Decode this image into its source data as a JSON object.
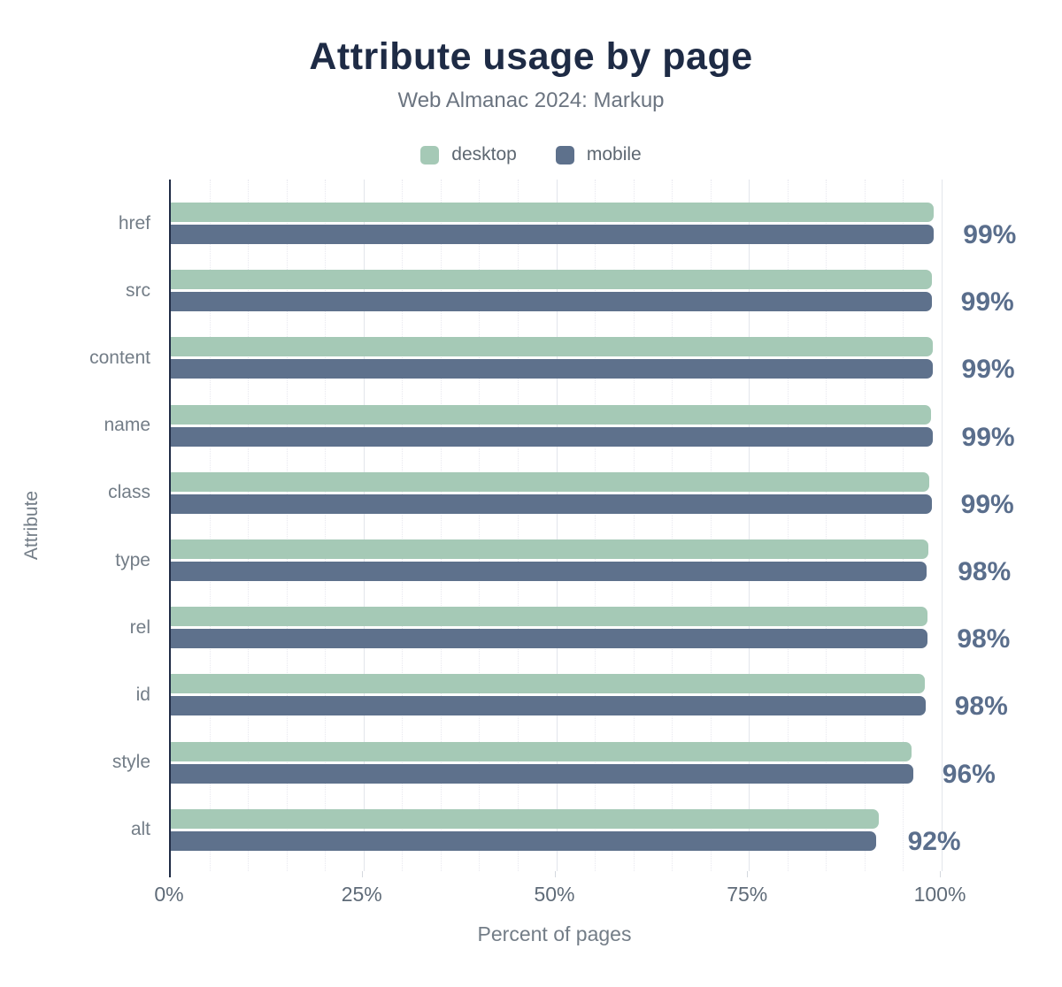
{
  "chart_data": {
    "type": "bar",
    "orientation": "horizontal",
    "title": "Attribute usage by page",
    "subtitle": "Web Almanac 2024: Markup",
    "categories": [
      "href",
      "src",
      "content",
      "name",
      "class",
      "type",
      "rel",
      "id",
      "style",
      "alt"
    ],
    "series": [
      {
        "name": "desktop",
        "color": "#a5c9b6",
        "values": [
          99.0,
          98.7,
          98.8,
          98.6,
          98.4,
          98.3,
          98.2,
          97.8,
          96.1,
          91.8
        ]
      },
      {
        "name": "mobile",
        "color": "#5e718c",
        "values": [
          99.0,
          98.7,
          98.8,
          98.8,
          98.7,
          98.1,
          98.2,
          97.9,
          96.3,
          91.5
        ]
      }
    ],
    "value_labels": [
      "99%",
      "99%",
      "99%",
      "99%",
      "99%",
      "98%",
      "98%",
      "98%",
      "96%",
      "92%"
    ],
    "xlabel": "Percent of pages",
    "ylabel": "Attribute",
    "xlim": [
      0,
      100
    ],
    "x_ticks": [
      {
        "value": 0,
        "label": "0%"
      },
      {
        "value": 25,
        "label": "25%"
      },
      {
        "value": 50,
        "label": "50%"
      },
      {
        "value": 75,
        "label": "75%"
      },
      {
        "value": 100,
        "label": "100%"
      }
    ],
    "grid": {
      "minor_step_pct": 5,
      "major_step_pct": 25,
      "minor_style": "dotted",
      "major_style": "solid"
    },
    "legend_position": "top",
    "colors": {
      "title": "#1e2b45",
      "subtitle": "#6b7480",
      "axis_line": "#1f2b45",
      "value_label": "#5a6e8c",
      "tick_label": "#5f6b78",
      "category_label": "#737d87"
    }
  }
}
